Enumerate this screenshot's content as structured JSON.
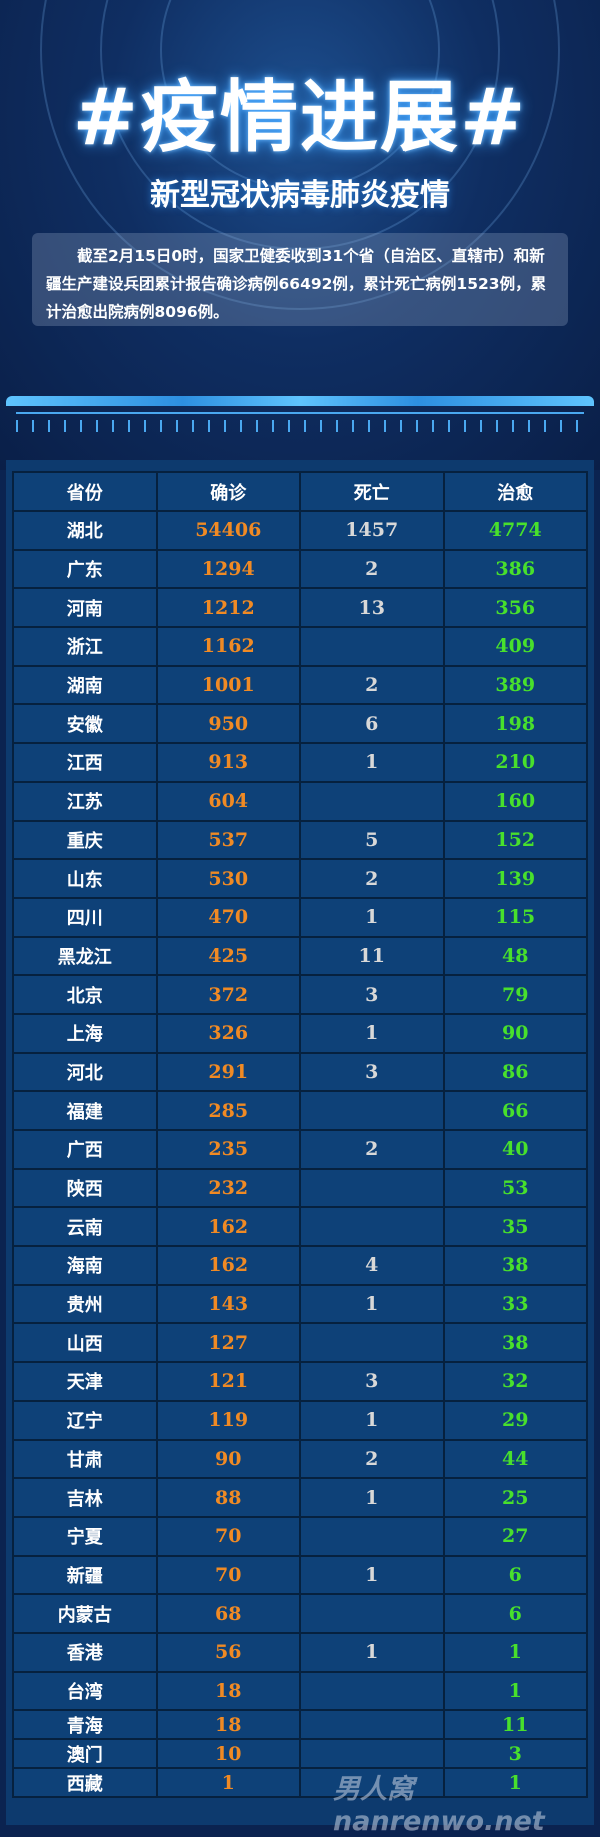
{
  "header": {
    "title": "#疫情进展#",
    "subtitle": "新型冠状病毒肺炎疫情"
  },
  "summary": "截至2月15日0时，国家卫健委收到31个省（自治区、直辖市）和新疆生产建设兵团累计报告确诊病例66492例，累计死亡病例1523例，累计治愈出院病例8096例。",
  "colors": {
    "confirmed": "#f08a24",
    "deaths": "#d8d8d8",
    "recovered": "#48e02c",
    "background": "#0d3a6e"
  },
  "table": {
    "columns": [
      "省份",
      "确诊",
      "死亡",
      "治愈"
    ],
    "rows": [
      [
        "湖北",
        "54406",
        "1457",
        "4774"
      ],
      [
        "广东",
        "1294",
        "2",
        "386"
      ],
      [
        "河南",
        "1212",
        "13",
        "356"
      ],
      [
        "浙江",
        "1162",
        "",
        "409"
      ],
      [
        "湖南",
        "1001",
        "2",
        "389"
      ],
      [
        "安徽",
        "950",
        "6",
        "198"
      ],
      [
        "江西",
        "913",
        "1",
        "210"
      ],
      [
        "江苏",
        "604",
        "",
        "160"
      ],
      [
        "重庆",
        "537",
        "5",
        "152"
      ],
      [
        "山东",
        "530",
        "2",
        "139"
      ],
      [
        "四川",
        "470",
        "1",
        "115"
      ],
      [
        "黑龙江",
        "425",
        "11",
        "48"
      ],
      [
        "北京",
        "372",
        "3",
        "79"
      ],
      [
        "上海",
        "326",
        "1",
        "90"
      ],
      [
        "河北",
        "291",
        "3",
        "86"
      ],
      [
        "福建",
        "285",
        "",
        "66"
      ],
      [
        "广西",
        "235",
        "2",
        "40"
      ],
      [
        "陕西",
        "232",
        "",
        "53"
      ],
      [
        "云南",
        "162",
        "",
        "35"
      ],
      [
        "海南",
        "162",
        "4",
        "38"
      ],
      [
        "贵州",
        "143",
        "1",
        "33"
      ],
      [
        "山西",
        "127",
        "",
        "38"
      ],
      [
        "天津",
        "121",
        "3",
        "32"
      ],
      [
        "辽宁",
        "119",
        "1",
        "29"
      ],
      [
        "甘肃",
        "90",
        "2",
        "44"
      ],
      [
        "吉林",
        "88",
        "1",
        "25"
      ],
      [
        "宁夏",
        "70",
        "",
        "27"
      ],
      [
        "新疆",
        "70",
        "1",
        "6"
      ],
      [
        "内蒙古",
        "68",
        "",
        "6"
      ],
      [
        "香港",
        "56",
        "1",
        "1"
      ],
      [
        "台湾",
        "18",
        "",
        "1"
      ],
      [
        "青海",
        "18",
        "",
        "11"
      ],
      [
        "澳门",
        "10",
        "",
        "3"
      ],
      [
        "西藏",
        "1",
        "",
        "1"
      ]
    ]
  },
  "watermark": "男人窝nanrenwo.net"
}
